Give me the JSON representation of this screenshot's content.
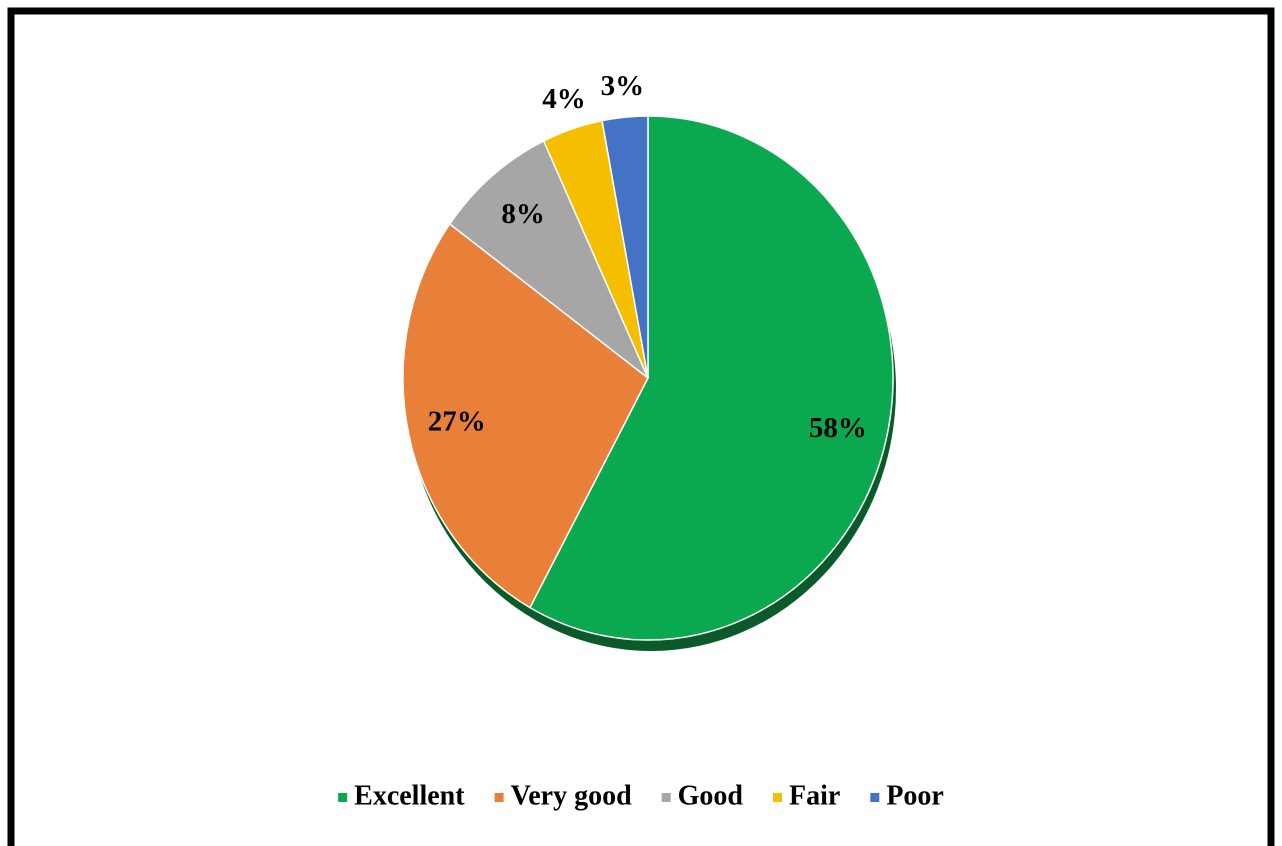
{
  "chart_data": {
    "type": "pie",
    "categories": [
      "Excellent",
      "Very good",
      "Good",
      "Fair",
      "Poor"
    ],
    "values": [
      58,
      27,
      8,
      4,
      3
    ],
    "value_labels": [
      "58%",
      "27%",
      "8%",
      "4%",
      "3%"
    ],
    "colors": [
      "#0aa84f",
      "#e8803a",
      "#a6a6a6",
      "#f5bf00",
      "#4472c4"
    ],
    "legend": "bottom"
  }
}
